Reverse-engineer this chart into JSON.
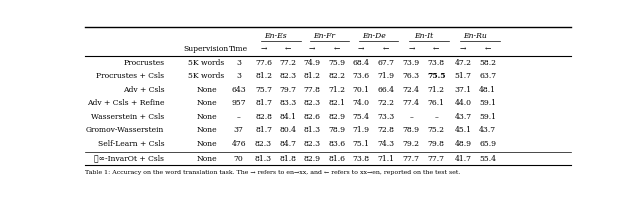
{
  "header_groups": [
    "En-Es",
    "En-Fr",
    "En-De",
    "En-It",
    "En-Ru"
  ],
  "rows": [
    [
      "Procrustes",
      "5K words",
      "3",
      "77.6",
      "77.2",
      "74.9",
      "75.9",
      "68.4",
      "67.7",
      "73.9",
      "73.8",
      "47.2",
      "58.2"
    ],
    [
      "Procrustes + Csls",
      "5K words",
      "3",
      "81.2",
      "82.3",
      "81.2",
      "82.2",
      "73.6",
      "71.9",
      "76.3",
      "75.5",
      "51.7",
      "63.7"
    ],
    [
      "Adv + Csls",
      "None",
      "643",
      "75.7",
      "79.7",
      "77.8",
      "71.2",
      "70.1",
      "66.4",
      "72.4",
      "71.2",
      "37.1",
      "48.1"
    ],
    [
      "Adv + Csls + Refine",
      "None",
      "957",
      "81.7",
      "83.3",
      "82.3",
      "82.1",
      "74.0",
      "72.2",
      "77.4",
      "76.1",
      "44.0",
      "59.1"
    ],
    [
      "Wasserstein + Csls",
      "None",
      "–",
      "82.8",
      "84.1",
      "82.6",
      "82.9",
      "75.4",
      "73.3",
      "–",
      "–",
      "43.7",
      "59.1"
    ],
    [
      "Gromov-Wasserstein",
      "None",
      "37",
      "81.7",
      "80.4",
      "81.3",
      "78.9",
      "71.9",
      "72.8",
      "78.9",
      "75.2",
      "45.1",
      "43.7"
    ],
    [
      "Self-Learn + Csls",
      "None",
      "476",
      "82.3",
      "84.7",
      "82.3",
      "83.6",
      "75.1",
      "74.3",
      "79.2",
      "79.8",
      "48.9",
      "65.9"
    ]
  ],
  "last_row": [
    "ℓ∞-InvarOt + Csls",
    "None",
    "70",
    "81.3",
    "81.8",
    "82.9",
    "81.6",
    "73.8",
    "71.1",
    "77.7",
    "77.7",
    "41.7",
    "55.4"
  ],
  "bold_row": 1,
  "bold_col": 7,
  "footnote": "Table 1: Accuracy on the word translation task. The → refers to en→xx, and ← refers to xx→en, reported on the test set.",
  "bg_color": "#ffffff"
}
